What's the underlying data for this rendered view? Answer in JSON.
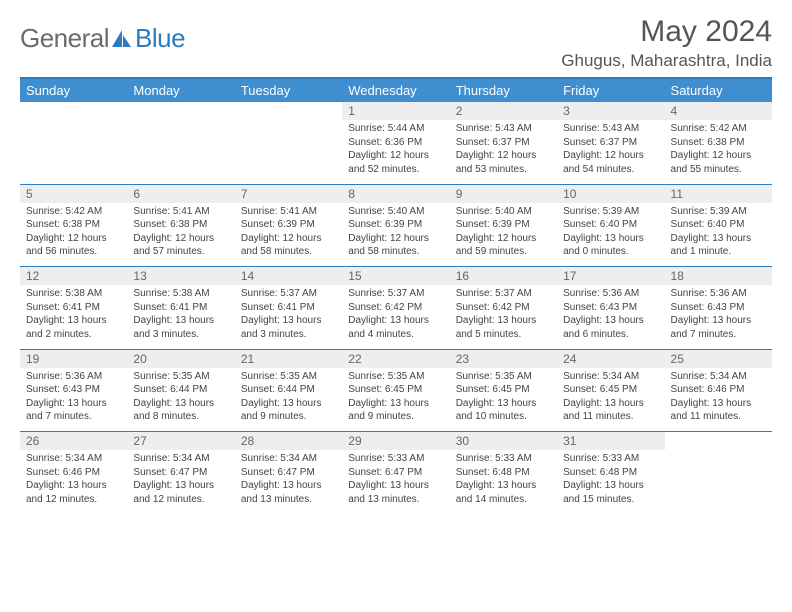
{
  "brand": {
    "name_a": "General",
    "name_b": "Blue"
  },
  "title": "May 2024",
  "location": "Ghugus, Maharashtra, India",
  "colors": {
    "accent": "#2d7bc0",
    "header_bg": "#3e8ed0",
    "daynum_bg": "#eeeeee",
    "text": "#444444"
  },
  "day_headers": [
    "Sunday",
    "Monday",
    "Tuesday",
    "Wednesday",
    "Thursday",
    "Friday",
    "Saturday"
  ],
  "weeks": [
    [
      null,
      null,
      null,
      {
        "n": "1",
        "sr": "5:44 AM",
        "ss": "6:36 PM",
        "dl": "12 hours and 52 minutes."
      },
      {
        "n": "2",
        "sr": "5:43 AM",
        "ss": "6:37 PM",
        "dl": "12 hours and 53 minutes."
      },
      {
        "n": "3",
        "sr": "5:43 AM",
        "ss": "6:37 PM",
        "dl": "12 hours and 54 minutes."
      },
      {
        "n": "4",
        "sr": "5:42 AM",
        "ss": "6:38 PM",
        "dl": "12 hours and 55 minutes."
      }
    ],
    [
      {
        "n": "5",
        "sr": "5:42 AM",
        "ss": "6:38 PM",
        "dl": "12 hours and 56 minutes."
      },
      {
        "n": "6",
        "sr": "5:41 AM",
        "ss": "6:38 PM",
        "dl": "12 hours and 57 minutes."
      },
      {
        "n": "7",
        "sr": "5:41 AM",
        "ss": "6:39 PM",
        "dl": "12 hours and 58 minutes."
      },
      {
        "n": "8",
        "sr": "5:40 AM",
        "ss": "6:39 PM",
        "dl": "12 hours and 58 minutes."
      },
      {
        "n": "9",
        "sr": "5:40 AM",
        "ss": "6:39 PM",
        "dl": "12 hours and 59 minutes."
      },
      {
        "n": "10",
        "sr": "5:39 AM",
        "ss": "6:40 PM",
        "dl": "13 hours and 0 minutes."
      },
      {
        "n": "11",
        "sr": "5:39 AM",
        "ss": "6:40 PM",
        "dl": "13 hours and 1 minute."
      }
    ],
    [
      {
        "n": "12",
        "sr": "5:38 AM",
        "ss": "6:41 PM",
        "dl": "13 hours and 2 minutes."
      },
      {
        "n": "13",
        "sr": "5:38 AM",
        "ss": "6:41 PM",
        "dl": "13 hours and 3 minutes."
      },
      {
        "n": "14",
        "sr": "5:37 AM",
        "ss": "6:41 PM",
        "dl": "13 hours and 3 minutes."
      },
      {
        "n": "15",
        "sr": "5:37 AM",
        "ss": "6:42 PM",
        "dl": "13 hours and 4 minutes."
      },
      {
        "n": "16",
        "sr": "5:37 AM",
        "ss": "6:42 PM",
        "dl": "13 hours and 5 minutes."
      },
      {
        "n": "17",
        "sr": "5:36 AM",
        "ss": "6:43 PM",
        "dl": "13 hours and 6 minutes."
      },
      {
        "n": "18",
        "sr": "5:36 AM",
        "ss": "6:43 PM",
        "dl": "13 hours and 7 minutes."
      }
    ],
    [
      {
        "n": "19",
        "sr": "5:36 AM",
        "ss": "6:43 PM",
        "dl": "13 hours and 7 minutes."
      },
      {
        "n": "20",
        "sr": "5:35 AM",
        "ss": "6:44 PM",
        "dl": "13 hours and 8 minutes."
      },
      {
        "n": "21",
        "sr": "5:35 AM",
        "ss": "6:44 PM",
        "dl": "13 hours and 9 minutes."
      },
      {
        "n": "22",
        "sr": "5:35 AM",
        "ss": "6:45 PM",
        "dl": "13 hours and 9 minutes."
      },
      {
        "n": "23",
        "sr": "5:35 AM",
        "ss": "6:45 PM",
        "dl": "13 hours and 10 minutes."
      },
      {
        "n": "24",
        "sr": "5:34 AM",
        "ss": "6:45 PM",
        "dl": "13 hours and 11 minutes."
      },
      {
        "n": "25",
        "sr": "5:34 AM",
        "ss": "6:46 PM",
        "dl": "13 hours and 11 minutes."
      }
    ],
    [
      {
        "n": "26",
        "sr": "5:34 AM",
        "ss": "6:46 PM",
        "dl": "13 hours and 12 minutes."
      },
      {
        "n": "27",
        "sr": "5:34 AM",
        "ss": "6:47 PM",
        "dl": "13 hours and 12 minutes."
      },
      {
        "n": "28",
        "sr": "5:34 AM",
        "ss": "6:47 PM",
        "dl": "13 hours and 13 minutes."
      },
      {
        "n": "29",
        "sr": "5:33 AM",
        "ss": "6:47 PM",
        "dl": "13 hours and 13 minutes."
      },
      {
        "n": "30",
        "sr": "5:33 AM",
        "ss": "6:48 PM",
        "dl": "13 hours and 14 minutes."
      },
      {
        "n": "31",
        "sr": "5:33 AM",
        "ss": "6:48 PM",
        "dl": "13 hours and 15 minutes."
      },
      null
    ]
  ]
}
